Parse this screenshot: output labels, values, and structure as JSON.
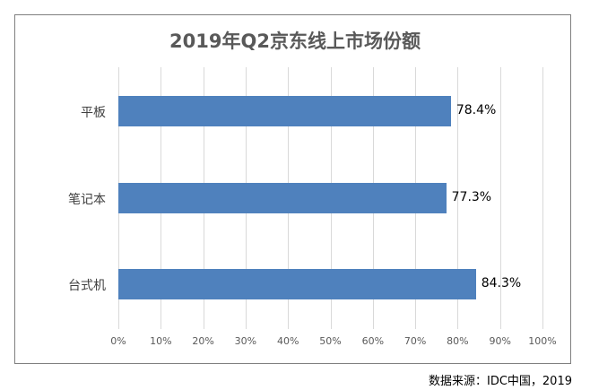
{
  "chart_data": {
    "type": "bar",
    "orientation": "horizontal",
    "title": "2019年Q2京东线上市场份额",
    "categories": [
      "平板",
      "笔记本",
      "台式机"
    ],
    "values": [
      78.4,
      77.3,
      84.3
    ],
    "value_labels": [
      "78.4%",
      "77.3%",
      "84.3%"
    ],
    "xlabel": "",
    "ylabel": "",
    "xlim": [
      0,
      100
    ],
    "x_ticks": [
      "0%",
      "10%",
      "20%",
      "30%",
      "40%",
      "50%",
      "60%",
      "70%",
      "80%",
      "90%",
      "100%"
    ],
    "grid": true,
    "legend": null,
    "bar_color": "#4f81bd"
  },
  "source": "数据来源：IDC中国，2019"
}
